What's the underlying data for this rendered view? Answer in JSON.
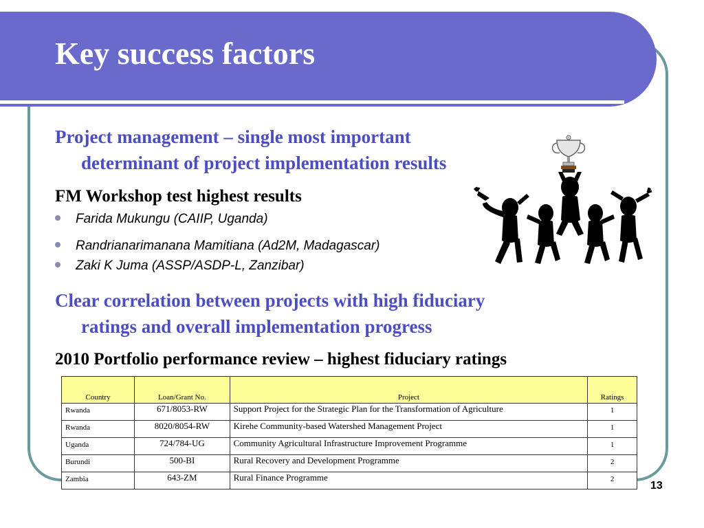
{
  "slide": {
    "title": "Key success factors",
    "page_number": "13"
  },
  "section1": {
    "heading_line1": "Project management – single most important",
    "heading_line2": "determinant of project implementation results",
    "subheading": "FM Workshop test highest results",
    "bullets": [
      "Farida Mukungu (CAIIP, Uganda)",
      "Randrianarimanana Mamitiana  (Ad2M, Madagascar)",
      "Zaki K Juma (ASSP/ASDP-L, Zanzibar)"
    ]
  },
  "section2": {
    "heading_line1": "Clear correlation between projects with high fiduciary",
    "heading_line2": "ratings and overall implementation progress",
    "subheading": "2010 Portfolio performance review – highest fiduciary ratings"
  },
  "table": {
    "headers": [
      "Country",
      "Loan/Grant No.",
      "Project",
      "Ratings"
    ],
    "rows": [
      [
        "Rwanda",
        "671/8053-RW",
        "Support Project for the Strategic Plan for the Transformation of Agriculture",
        "1"
      ],
      [
        "Rwanda",
        "8020/8054-RW",
        "Kirehe Community-based Watershed Management Project",
        "1"
      ],
      [
        "Uganda",
        "724/784-UG",
        "Community Agricultural Infrastructure Improvement Programme",
        "1"
      ],
      [
        "Burundi",
        "500-BI",
        "Rural Recovery and Development Programme",
        "2"
      ],
      [
        "Zambia",
        "643-ZM",
        "Rural Finance Programme",
        "2"
      ]
    ]
  },
  "colors": {
    "title_band": "#6a6acd",
    "heading_blue": "#4d4dc2",
    "frame_border": "#6b9a9a",
    "table_header_bg": "#ffff99"
  },
  "icons": {
    "clipart": "celebrating-stick-figures-with-trophy-icon"
  }
}
